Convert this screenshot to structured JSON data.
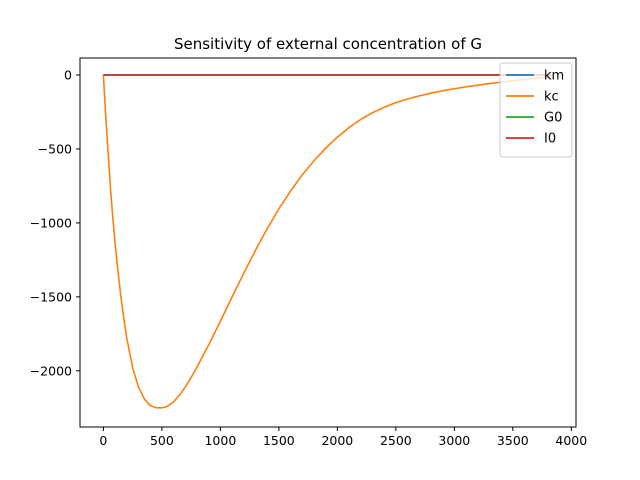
{
  "chart_data": {
    "type": "line",
    "title": "Sensitivity of external concentration of G",
    "xlabel": "",
    "ylabel": "",
    "xlim": [
      -200,
      4040
    ],
    "ylim": [
      -2380,
      115
    ],
    "xticks": [
      0,
      500,
      1000,
      1500,
      2000,
      2500,
      3000,
      3500,
      4000
    ],
    "xtick_labels": [
      "0",
      "500",
      "1000",
      "1500",
      "2000",
      "2500",
      "3000",
      "3500",
      "4000"
    ],
    "yticks": [
      0,
      -500,
      -1000,
      -1500,
      -2000
    ],
    "ytick_labels": [
      "0",
      "−500",
      "−1000",
      "−1500",
      "−2000"
    ],
    "grid": false,
    "legend_position": "top-right",
    "x": [
      0,
      20,
      40,
      60,
      80,
      100,
      125,
      150,
      175,
      200,
      250,
      300,
      350,
      400,
      450,
      500,
      530,
      550,
      600,
      650,
      700,
      750,
      800,
      850,
      900,
      950,
      1000,
      1100,
      1200,
      1300,
      1400,
      1500,
      1600,
      1700,
      1800,
      1900,
      2000,
      2100,
      2200,
      2300,
      2400,
      2500,
      2600,
      2700,
      2800,
      2900,
      3000,
      3100,
      3200,
      3300,
      3400,
      3500,
      3600,
      3700,
      3830
    ],
    "series": [
      {
        "name": "km",
        "color": "#1f77b4",
        "values": [
          0,
          0,
          0,
          0,
          0,
          0,
          0,
          0,
          0,
          0,
          0,
          0,
          0,
          0,
          0,
          0,
          0,
          0,
          0,
          0,
          0,
          0,
          0,
          0,
          0,
          0,
          0,
          0,
          0,
          0,
          0,
          0,
          0,
          0,
          0,
          0,
          0,
          0,
          0,
          0,
          0,
          0,
          0,
          0,
          0,
          0,
          0,
          0,
          0,
          0,
          0,
          0,
          0,
          0,
          0
        ]
      },
      {
        "name": "kc",
        "color": "#ff7f0e",
        "values": [
          0,
          -280,
          -520,
          -760,
          -960,
          -1140,
          -1330,
          -1500,
          -1650,
          -1780,
          -1980,
          -2110,
          -2190,
          -2235,
          -2250,
          -2250,
          -2245,
          -2238,
          -2210,
          -2165,
          -2110,
          -2045,
          -1975,
          -1900,
          -1825,
          -1745,
          -1665,
          -1500,
          -1340,
          -1185,
          -1040,
          -905,
          -785,
          -675,
          -580,
          -495,
          -420,
          -355,
          -300,
          -255,
          -218,
          -187,
          -162,
          -141,
          -123,
          -107,
          -93,
          -80,
          -69,
          -58,
          -48,
          -39,
          -30,
          -22,
          -12
        ]
      },
      {
        "name": "G0",
        "color": "#2ca02c",
        "values": [
          0,
          0,
          0,
          0,
          0,
          0,
          0,
          0,
          0,
          0,
          0,
          0,
          0,
          0,
          0,
          0,
          0,
          0,
          0,
          0,
          0,
          0,
          0,
          0,
          0,
          0,
          0,
          0,
          0,
          0,
          0,
          0,
          0,
          0,
          0,
          0,
          0,
          0,
          0,
          0,
          0,
          0,
          0,
          0,
          0,
          0,
          0,
          0,
          0,
          0,
          0,
          0,
          0,
          0,
          0
        ]
      },
      {
        "name": "I0",
        "color": "#d62728",
        "values": [
          0,
          0,
          0,
          0,
          0,
          0,
          0,
          0,
          0,
          0,
          0,
          0,
          0,
          0,
          0,
          0,
          0,
          0,
          0,
          0,
          0,
          0,
          0,
          0,
          0,
          0,
          0,
          0,
          0,
          0,
          0,
          0,
          0,
          0,
          0,
          0,
          0,
          0,
          0,
          0,
          0,
          0,
          0,
          0,
          0,
          0,
          0,
          0,
          0,
          0,
          0,
          0,
          0,
          0,
          0
        ]
      }
    ]
  }
}
